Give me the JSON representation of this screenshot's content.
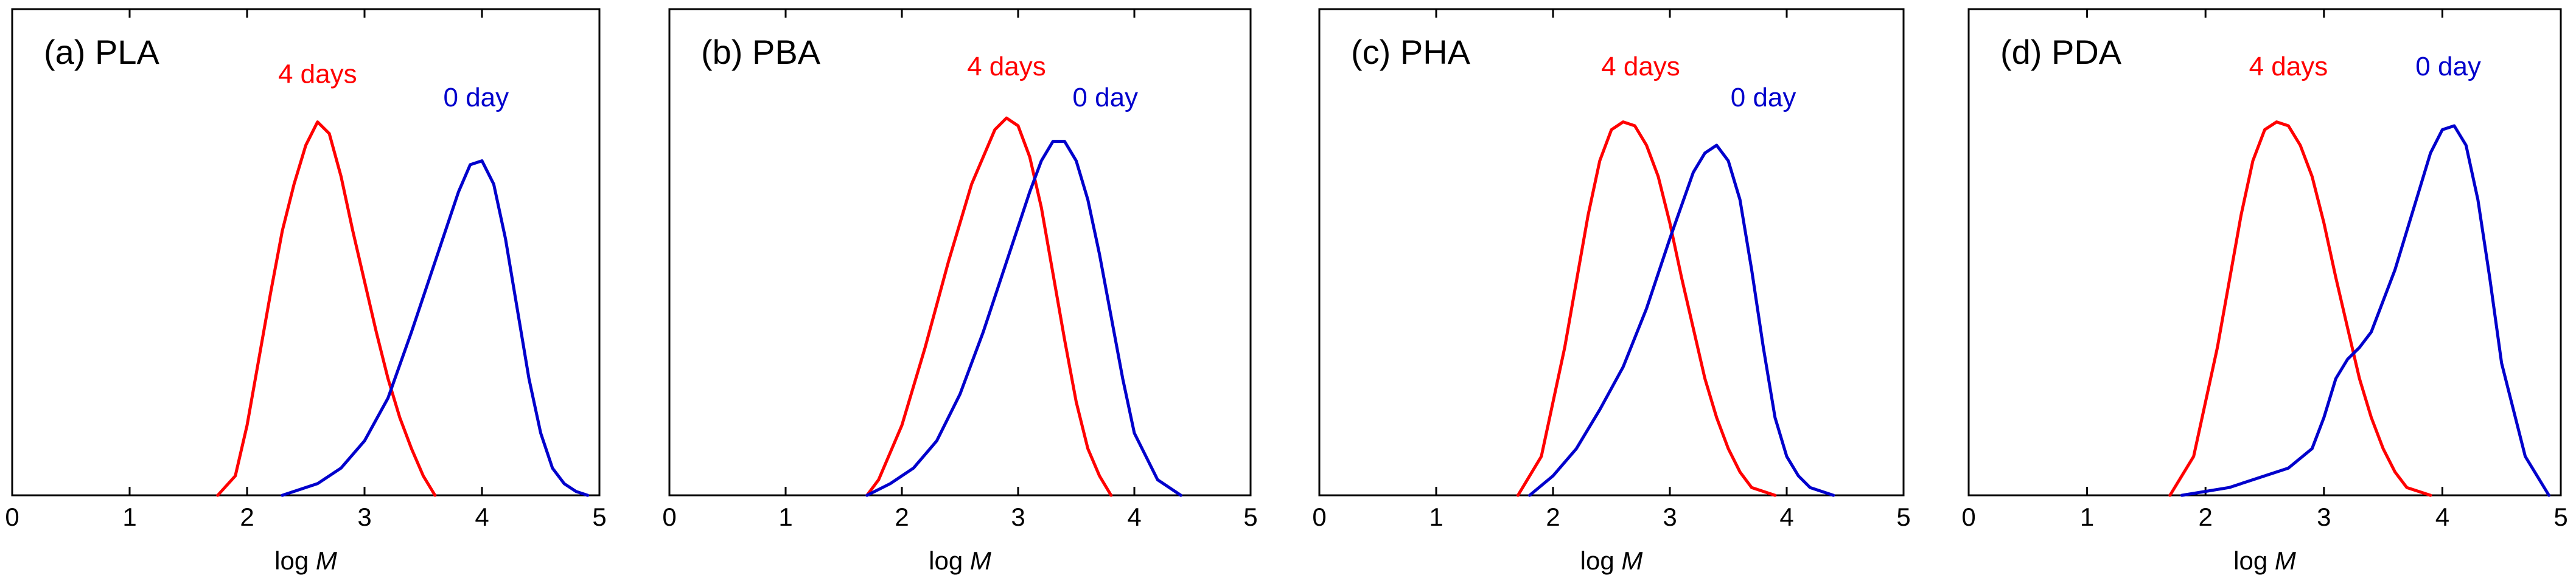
{
  "colors": {
    "red": "#ff0000",
    "blue": "#0000cc"
  },
  "chart_data": [
    {
      "type": "line",
      "title": "(a) PLA",
      "xlabel_prefix": "log ",
      "xlabel_var": "M",
      "ylabel": "",
      "xlim": [
        0,
        5
      ],
      "ylim": [
        0,
        1
      ],
      "xticks": [
        "0",
        "1",
        "2",
        "3",
        "4",
        "5"
      ],
      "series": [
        {
          "name": "4 days",
          "color": "#ff0000",
          "x": [
            1.75,
            1.9,
            2.0,
            2.1,
            2.2,
            2.3,
            2.4,
            2.5,
            2.6,
            2.7,
            2.8,
            2.9,
            3.0,
            3.1,
            3.2,
            3.3,
            3.4,
            3.5,
            3.6
          ],
          "y": [
            0.0,
            0.05,
            0.18,
            0.35,
            0.52,
            0.68,
            0.8,
            0.9,
            0.96,
            0.93,
            0.82,
            0.68,
            0.55,
            0.42,
            0.3,
            0.2,
            0.12,
            0.05,
            0.0
          ]
        },
        {
          "name": "0 day",
          "color": "#0000cc",
          "x": [
            2.3,
            2.6,
            2.8,
            3.0,
            3.2,
            3.4,
            3.6,
            3.8,
            3.9,
            4.0,
            4.1,
            4.2,
            4.3,
            4.4,
            4.5,
            4.6,
            4.7,
            4.8,
            4.9
          ],
          "y": [
            0.0,
            0.03,
            0.07,
            0.14,
            0.25,
            0.42,
            0.6,
            0.78,
            0.85,
            0.86,
            0.8,
            0.66,
            0.48,
            0.3,
            0.16,
            0.07,
            0.03,
            0.01,
            0.0
          ]
        }
      ]
    },
    {
      "type": "line",
      "title": "(b) PBA",
      "xlabel_prefix": "log ",
      "xlabel_var": "M",
      "ylabel": "",
      "xlim": [
        0,
        5
      ],
      "ylim": [
        0,
        1
      ],
      "xticks": [
        "0",
        "1",
        "2",
        "3",
        "4",
        "5"
      ],
      "series": [
        {
          "name": "4 days",
          "color": "#ff0000",
          "x": [
            1.7,
            1.8,
            2.0,
            2.2,
            2.4,
            2.6,
            2.8,
            2.9,
            3.0,
            3.1,
            3.2,
            3.3,
            3.4,
            3.5,
            3.6,
            3.7,
            3.8
          ],
          "y": [
            0.0,
            0.04,
            0.18,
            0.38,
            0.6,
            0.8,
            0.94,
            0.97,
            0.95,
            0.87,
            0.74,
            0.57,
            0.4,
            0.24,
            0.12,
            0.05,
            0.0
          ]
        },
        {
          "name": "0 day",
          "color": "#0000cc",
          "x": [
            1.7,
            1.9,
            2.1,
            2.3,
            2.5,
            2.7,
            2.9,
            3.1,
            3.2,
            3.3,
            3.4,
            3.5,
            3.6,
            3.7,
            3.8,
            3.9,
            4.0,
            4.2,
            4.4
          ],
          "y": [
            0.0,
            0.03,
            0.07,
            0.14,
            0.26,
            0.42,
            0.6,
            0.78,
            0.86,
            0.91,
            0.91,
            0.86,
            0.76,
            0.62,
            0.46,
            0.3,
            0.16,
            0.04,
            0.0
          ]
        }
      ]
    },
    {
      "type": "line",
      "title": "(c) PHA",
      "xlabel_prefix": "log ",
      "xlabel_var": "M",
      "ylabel": "",
      "xlim": [
        0,
        5
      ],
      "ylim": [
        0,
        1
      ],
      "xticks": [
        "0",
        "1",
        "2",
        "3",
        "4",
        "5"
      ],
      "series": [
        {
          "name": "4 days",
          "color": "#ff0000",
          "x": [
            1.7,
            1.9,
            2.1,
            2.3,
            2.4,
            2.5,
            2.6,
            2.7,
            2.8,
            2.9,
            3.0,
            3.1,
            3.2,
            3.3,
            3.4,
            3.5,
            3.6,
            3.7,
            3.9
          ],
          "y": [
            0.0,
            0.1,
            0.38,
            0.72,
            0.86,
            0.94,
            0.96,
            0.95,
            0.9,
            0.82,
            0.7,
            0.56,
            0.43,
            0.3,
            0.2,
            0.12,
            0.06,
            0.02,
            0.0
          ]
        },
        {
          "name": "0 day",
          "color": "#0000cc",
          "x": [
            1.8,
            2.0,
            2.2,
            2.4,
            2.6,
            2.8,
            3.0,
            3.2,
            3.3,
            3.4,
            3.5,
            3.6,
            3.7,
            3.8,
            3.9,
            4.0,
            4.1,
            4.2,
            4.4
          ],
          "y": [
            0.0,
            0.05,
            0.12,
            0.22,
            0.33,
            0.48,
            0.66,
            0.83,
            0.88,
            0.9,
            0.86,
            0.76,
            0.58,
            0.38,
            0.2,
            0.1,
            0.05,
            0.02,
            0.0
          ]
        }
      ]
    },
    {
      "type": "line",
      "title": "(d) PDA",
      "xlabel_prefix": "log ",
      "xlabel_var": "M",
      "ylabel": "",
      "xlim": [
        0,
        5
      ],
      "ylim": [
        0,
        1
      ],
      "xticks": [
        "0",
        "1",
        "2",
        "3",
        "4",
        "5"
      ],
      "series": [
        {
          "name": "4 days",
          "color": "#ff0000",
          "x": [
            1.7,
            1.9,
            2.1,
            2.3,
            2.4,
            2.5,
            2.6,
            2.7,
            2.8,
            2.9,
            3.0,
            3.1,
            3.2,
            3.3,
            3.4,
            3.5,
            3.6,
            3.7,
            3.9
          ],
          "y": [
            0.0,
            0.1,
            0.38,
            0.72,
            0.86,
            0.94,
            0.96,
            0.95,
            0.9,
            0.82,
            0.7,
            0.56,
            0.43,
            0.3,
            0.2,
            0.12,
            0.06,
            0.02,
            0.0
          ]
        },
        {
          "name": "0 day",
          "color": "#0000cc",
          "x": [
            1.8,
            2.2,
            2.5,
            2.7,
            2.9,
            3.0,
            3.1,
            3.2,
            3.3,
            3.4,
            3.6,
            3.8,
            3.9,
            4.0,
            4.1,
            4.2,
            4.3,
            4.4,
            4.5,
            4.7,
            4.9
          ],
          "y": [
            0.0,
            0.02,
            0.05,
            0.07,
            0.12,
            0.2,
            0.3,
            0.35,
            0.38,
            0.42,
            0.58,
            0.78,
            0.88,
            0.94,
            0.95,
            0.9,
            0.76,
            0.56,
            0.34,
            0.1,
            0.0
          ]
        }
      ]
    }
  ]
}
